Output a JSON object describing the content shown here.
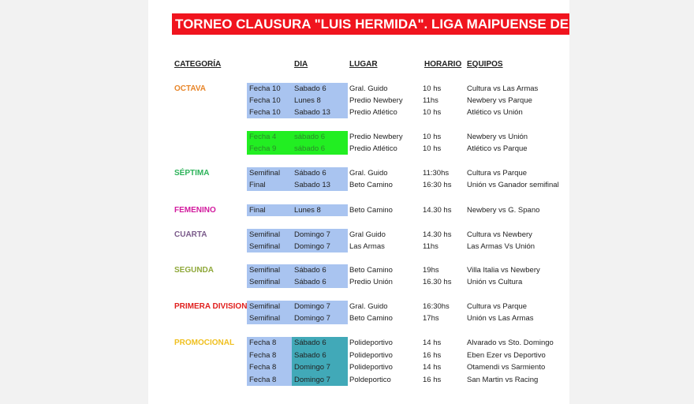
{
  "title": "TORNEO CLAUSURA \"LUIS HERMIDA\".  LIGA MAIPUENSE DE FU",
  "headers": {
    "categoria": "CATEGORÍA",
    "dia": "DIA",
    "lugar": "LUGAR",
    "horario": "HORARIO",
    "equipos": "EQUIPOS"
  },
  "colors": {
    "blue_highlight": "#a9c4f0",
    "green_highlight": "#22ee22",
    "teal_highlight": "#41a9b8",
    "banner": "#f0141e"
  },
  "groups": [
    {
      "category": "OCTAVA",
      "color": "#e8862a",
      "highlight": "blue",
      "rows": [
        {
          "fecha": "Fecha 10",
          "dia": "Sabado 6",
          "lugar": "Gral. Guido",
          "horario": "10 hs",
          "equipos": "Cultura vs Las Armas"
        },
        {
          "fecha": "Fecha 10",
          "dia": "Lunes 8",
          "lugar": "Predio Newbery",
          "horario": "11hs",
          "equipos": "Newbery vs Parque"
        },
        {
          "fecha": "Fecha 10",
          "dia": "Sabado 13",
          "lugar": "Predio Atlético",
          "horario": "10 hs",
          "equipos": "Atlético vs Unión"
        }
      ]
    },
    {
      "category": "",
      "color": "#e8862a",
      "highlight": "green",
      "rows": [
        {
          "fecha": "Fecha 4",
          "dia": "sábado 6",
          "lugar": "Predio Newbery",
          "horario": "10 hs",
          "equipos": "Newbery vs Unión"
        },
        {
          "fecha": "Fecha 9",
          "dia": "sábado 6",
          "lugar": "Predio Atlético",
          "horario": "10 hs",
          "equipos": "Atlético vs Parque"
        }
      ]
    },
    {
      "category": "SÉPTIMA",
      "color": "#2db35a",
      "highlight": "blue",
      "rows": [
        {
          "fecha": "Semifinal",
          "dia": "Sábado 6",
          "lugar": "Gral. Guido",
          "horario": "11:30hs",
          "equipos": "Cultura vs Parque"
        },
        {
          "fecha": "Final",
          "dia": "Sabado 13",
          "lugar": "Beto Camino",
          "horario": "16:30 hs",
          "equipos": "Unión vs Ganador semifinal"
        }
      ]
    },
    {
      "category": "FEMENINO",
      "color": "#d21a9e",
      "highlight": "blue",
      "rows": [
        {
          "fecha": "Final",
          "dia": "Lunes 8",
          "lugar": "Beto Camino",
          "horario": "14.30 hs",
          "equipos": "Newbery vs G. Spano"
        }
      ]
    },
    {
      "category": "CUARTA",
      "color": "#7a5a8a",
      "highlight": "blue",
      "rows": [
        {
          "fecha": "Semifinal",
          "dia": "Domingo 7",
          "lugar": "Gral Guido",
          "horario": "14.30 hs",
          "equipos": "Cultura vs Newbery"
        },
        {
          "fecha": "Semifinal",
          "dia": "Domingo 7",
          "lugar": "Las Armas",
          "horario": "11hs",
          "equipos": "Las Armas Vs Unión"
        }
      ]
    },
    {
      "category": "SEGUNDA",
      "color": "#8fa83a",
      "highlight": "blue",
      "rows": [
        {
          "fecha": "Semifinal",
          "dia": "Sábado 6",
          "lugar": "Beto Camino",
          "horario": "19hs",
          "equipos": "Villa Italia vs Newbery"
        },
        {
          "fecha": "Semifinal",
          "dia": "Sábado 6",
          "lugar": "Predio Unión",
          "horario": "16.30 hs",
          "equipos": "Unión vs Cultura"
        }
      ]
    },
    {
      "category": "PRIMERA DIVISION",
      "color": "#e0201e",
      "highlight": "blue",
      "rows": [
        {
          "fecha": "Semifinal",
          "dia": "Domingo 7",
          "lugar": "Gral. Guido",
          "horario": "16:30hs",
          "equipos": "Cultura vs Parque"
        },
        {
          "fecha": "Semifinal",
          "dia": "Domingo 7",
          "lugar": "Beto Camino",
          "horario": "17hs",
          "equipos": "Unión  vs Las Armas"
        }
      ]
    },
    {
      "category": "PROMOCIONAL",
      "color": "#f0c020",
      "highlight": "blue-teal",
      "rows": [
        {
          "fecha": "Fecha 8",
          "dia": "Sábado  6",
          "lugar": "Polideportivo",
          "horario": "14 hs",
          "equipos": "Alvarado vs Sto. Domingo"
        },
        {
          "fecha": "Fecha 8",
          "dia": "Sabado 6",
          "lugar": "Polideportivo",
          "horario": "16 hs",
          "equipos": "Eben Ezer vs Deportivo"
        },
        {
          "fecha": "Fecha 8",
          "dia": "Domingo 7",
          "lugar": "Polideportivo",
          "horario": "14 hs",
          "equipos": "Otamendi vs Sarmiento"
        },
        {
          "fecha": "Fecha 8",
          "dia": "Domingo 7",
          "lugar": "Poldeportico",
          "horario": "16 hs",
          "equipos": "San Martin vs Racing"
        }
      ]
    }
  ]
}
